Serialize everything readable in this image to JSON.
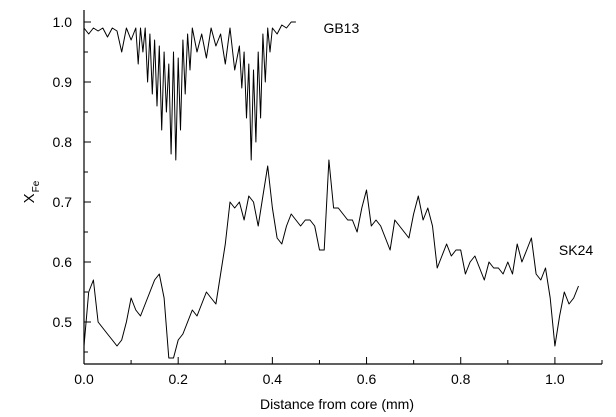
{
  "chart_data": {
    "type": "line",
    "xlabel": "Distance from core (mm)",
    "ylabel": "X",
    "ylabel_sub": "Fe",
    "xlim": [
      0.0,
      1.1
    ],
    "ylim": [
      0.43,
      1.02
    ],
    "xticks": [
      0.0,
      0.2,
      0.4,
      0.6,
      0.8,
      1.0
    ],
    "xtick_labels": [
      "0.0",
      "0.2",
      "0.4",
      "0.6",
      "0.8",
      "1.0"
    ],
    "yticks": [
      0.5,
      0.6,
      0.7,
      0.8,
      0.9,
      1.0
    ],
    "ytick_labels": [
      "0.5",
      "0.6",
      "0.7",
      "0.8",
      "0.9",
      "1.0"
    ],
    "grid": false,
    "legend": "none",
    "series": [
      {
        "name": "GB13",
        "label_at": [
          0.5,
          0.99
        ],
        "x": [
          0.0,
          0.01,
          0.02,
          0.03,
          0.04,
          0.05,
          0.06,
          0.07,
          0.08,
          0.09,
          0.1,
          0.11,
          0.115,
          0.12,
          0.125,
          0.13,
          0.135,
          0.14,
          0.145,
          0.15,
          0.155,
          0.16,
          0.165,
          0.17,
          0.175,
          0.18,
          0.185,
          0.19,
          0.195,
          0.2,
          0.205,
          0.21,
          0.215,
          0.22,
          0.225,
          0.23,
          0.24,
          0.25,
          0.26,
          0.27,
          0.28,
          0.29,
          0.3,
          0.31,
          0.32,
          0.33,
          0.335,
          0.34,
          0.345,
          0.35,
          0.355,
          0.36,
          0.365,
          0.37,
          0.375,
          0.38,
          0.385,
          0.39,
          0.395,
          0.4,
          0.41,
          0.42,
          0.43,
          0.44,
          0.45
        ],
        "y": [
          0.99,
          0.98,
          0.99,
          0.985,
          0.99,
          0.975,
          0.99,
          0.985,
          0.95,
          0.99,
          0.97,
          0.99,
          0.93,
          0.99,
          0.95,
          0.99,
          0.9,
          0.98,
          0.88,
          0.97,
          0.86,
          0.96,
          0.82,
          0.95,
          0.85,
          0.93,
          0.78,
          0.95,
          0.77,
          0.94,
          0.82,
          0.97,
          0.88,
          0.98,
          0.92,
          0.99,
          0.95,
          0.98,
          0.94,
          0.99,
          0.96,
          0.98,
          0.93,
          0.99,
          0.92,
          0.96,
          0.89,
          0.95,
          0.84,
          0.93,
          0.77,
          0.92,
          0.8,
          0.95,
          0.84,
          0.98,
          0.9,
          0.99,
          0.95,
          0.99,
          0.98,
          0.995,
          0.99,
          1.0,
          1.0
        ]
      },
      {
        "name": "SK24",
        "label_at": [
          1.0,
          0.62
        ],
        "x": [
          0.0,
          0.01,
          0.02,
          0.03,
          0.04,
          0.05,
          0.06,
          0.07,
          0.08,
          0.09,
          0.1,
          0.11,
          0.12,
          0.13,
          0.14,
          0.15,
          0.16,
          0.17,
          0.18,
          0.19,
          0.2,
          0.21,
          0.22,
          0.23,
          0.24,
          0.25,
          0.26,
          0.27,
          0.28,
          0.29,
          0.3,
          0.31,
          0.32,
          0.33,
          0.34,
          0.35,
          0.36,
          0.37,
          0.38,
          0.39,
          0.4,
          0.41,
          0.42,
          0.43,
          0.44,
          0.45,
          0.46,
          0.47,
          0.48,
          0.49,
          0.5,
          0.51,
          0.52,
          0.53,
          0.54,
          0.55,
          0.56,
          0.57,
          0.58,
          0.59,
          0.6,
          0.61,
          0.62,
          0.63,
          0.64,
          0.65,
          0.66,
          0.67,
          0.68,
          0.69,
          0.7,
          0.71,
          0.72,
          0.73,
          0.74,
          0.75,
          0.76,
          0.77,
          0.78,
          0.79,
          0.8,
          0.81,
          0.82,
          0.83,
          0.84,
          0.85,
          0.86,
          0.87,
          0.88,
          0.89,
          0.9,
          0.91,
          0.92,
          0.93,
          0.94,
          0.95,
          0.96,
          0.97,
          0.98,
          0.99,
          1.0,
          1.01,
          1.02,
          1.03,
          1.04,
          1.05
        ],
        "y": [
          0.46,
          0.55,
          0.57,
          0.5,
          0.49,
          0.48,
          0.47,
          0.46,
          0.47,
          0.5,
          0.54,
          0.52,
          0.51,
          0.53,
          0.55,
          0.57,
          0.58,
          0.54,
          0.44,
          0.44,
          0.47,
          0.48,
          0.5,
          0.52,
          0.51,
          0.53,
          0.55,
          0.54,
          0.53,
          0.58,
          0.63,
          0.7,
          0.69,
          0.7,
          0.67,
          0.71,
          0.7,
          0.66,
          0.71,
          0.76,
          0.69,
          0.64,
          0.63,
          0.66,
          0.68,
          0.67,
          0.66,
          0.67,
          0.67,
          0.66,
          0.62,
          0.62,
          0.77,
          0.69,
          0.69,
          0.68,
          0.67,
          0.67,
          0.65,
          0.69,
          0.72,
          0.66,
          0.67,
          0.66,
          0.64,
          0.62,
          0.67,
          0.66,
          0.65,
          0.64,
          0.68,
          0.71,
          0.67,
          0.69,
          0.66,
          0.59,
          0.61,
          0.63,
          0.61,
          0.62,
          0.62,
          0.58,
          0.6,
          0.61,
          0.59,
          0.57,
          0.6,
          0.59,
          0.59,
          0.58,
          0.6,
          0.58,
          0.63,
          0.6,
          0.62,
          0.64,
          0.58,
          0.57,
          0.59,
          0.54,
          0.46,
          0.51,
          0.55,
          0.53,
          0.54,
          0.56
        ]
      }
    ]
  }
}
